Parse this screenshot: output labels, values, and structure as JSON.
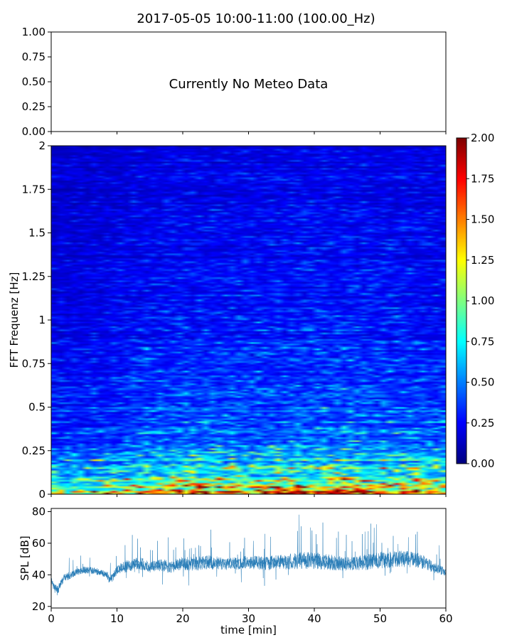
{
  "figure": {
    "title": "2017-05-05 10:00-11:00 (100.00_Hz)"
  },
  "colors": {
    "axis": "#000000",
    "spl_line": "#1f77b4",
    "colormap": "jet"
  },
  "chart_data": [
    {
      "id": "meteo",
      "type": "line",
      "title": "",
      "annotation": "Currently No Meteo Data",
      "xlabel": "",
      "ylabel": "",
      "xlim": [
        0,
        60
      ],
      "ylim": [
        0,
        1
      ],
      "ytick_labels": [
        "0.00",
        "0.25",
        "0.50",
        "0.75",
        "1.00"
      ],
      "xtick_labels": [],
      "series": []
    },
    {
      "id": "spectrogram",
      "type": "heatmap",
      "xlabel": "",
      "ylabel": "FFT Frequenz [Hz]",
      "xlim": [
        0,
        60
      ],
      "ylim": [
        0,
        2
      ],
      "ytick_labels": [
        "0",
        "0.25",
        "0.5",
        "0.75",
        "1",
        "1.25",
        "1.5",
        "1.75",
        "2"
      ],
      "ytick_values": [
        0,
        0.25,
        0.5,
        0.75,
        1,
        1.25,
        1.5,
        1.75,
        2
      ],
      "colorbar": {
        "range": [
          0,
          2
        ],
        "tick_labels": [
          "0.00",
          "0.25",
          "0.50",
          "0.75",
          "1.00",
          "1.25",
          "1.50",
          "1.75",
          "2.00"
        ],
        "tick_values": [
          0,
          0.25,
          0.5,
          0.75,
          1,
          1.25,
          1.5,
          1.75,
          2
        ]
      },
      "note_values": "approximate mean intensity vs frequency (Hz) and time (min)",
      "intensity_profile_by_frequency": {
        "frequency_hz": [
          0,
          0.05,
          0.1,
          0.15,
          0.2,
          0.25,
          0.35,
          0.5,
          0.75,
          1.0,
          1.5,
          2.0
        ],
        "value": [
          1.6,
          1.2,
          0.9,
          0.8,
          0.7,
          0.6,
          0.5,
          0.45,
          0.35,
          0.3,
          0.25,
          0.22
        ]
      },
      "intensity_profile_by_time": {
        "time_min": [
          0,
          5,
          10,
          15,
          20,
          30,
          40,
          45,
          50,
          55,
          60
        ],
        "factor": [
          0.8,
          0.85,
          0.9,
          1.05,
          1.1,
          1.1,
          1.15,
          1.15,
          1.1,
          1.1,
          1.0
        ]
      }
    },
    {
      "id": "spl",
      "type": "line",
      "xlabel": "time [min]",
      "ylabel": "SPL [dB]",
      "xlim": [
        0,
        60
      ],
      "ylim": [
        19,
        82
      ],
      "ytick_labels": [
        "20",
        "40",
        "60",
        "80"
      ],
      "ytick_values": [
        20,
        40,
        60,
        80
      ],
      "xtick_labels": [
        "0",
        "10",
        "20",
        "30",
        "40",
        "50",
        "60"
      ],
      "xtick_values": [
        0,
        10,
        20,
        30,
        40,
        50,
        60
      ],
      "series": [
        {
          "x": [
            0,
            0.5,
            1,
            1.5,
            2,
            3,
            4,
            5,
            6,
            7,
            8,
            8.5,
            9,
            9.5,
            10,
            11,
            12,
            13,
            14,
            15,
            16,
            17,
            18,
            19,
            20,
            22,
            24,
            26,
            28,
            30,
            32,
            34,
            36,
            38,
            40,
            42,
            44,
            46,
            48,
            50,
            52,
            54,
            56,
            58,
            60
          ],
          "mean": [
            36,
            32,
            30,
            35,
            38,
            40,
            42,
            43,
            43,
            42,
            41,
            40,
            37,
            39,
            43,
            45,
            46,
            47,
            47,
            45,
            46,
            46,
            45,
            46,
            47,
            47,
            48,
            47,
            47,
            48,
            47,
            48,
            48,
            49,
            49,
            48,
            47,
            47,
            48,
            49,
            50,
            50,
            49,
            45,
            42
          ],
          "spread": [
            6,
            8,
            7,
            5,
            6,
            5,
            5,
            5,
            5,
            5,
            5,
            5,
            6,
            6,
            7,
            8,
            9,
            9,
            9,
            8,
            8,
            9,
            9,
            9,
            10,
            10,
            10,
            9,
            9,
            10,
            10,
            10,
            11,
            12,
            12,
            12,
            10,
            10,
            11,
            12,
            12,
            12,
            11,
            8,
            6
          ]
        }
      ]
    }
  ]
}
